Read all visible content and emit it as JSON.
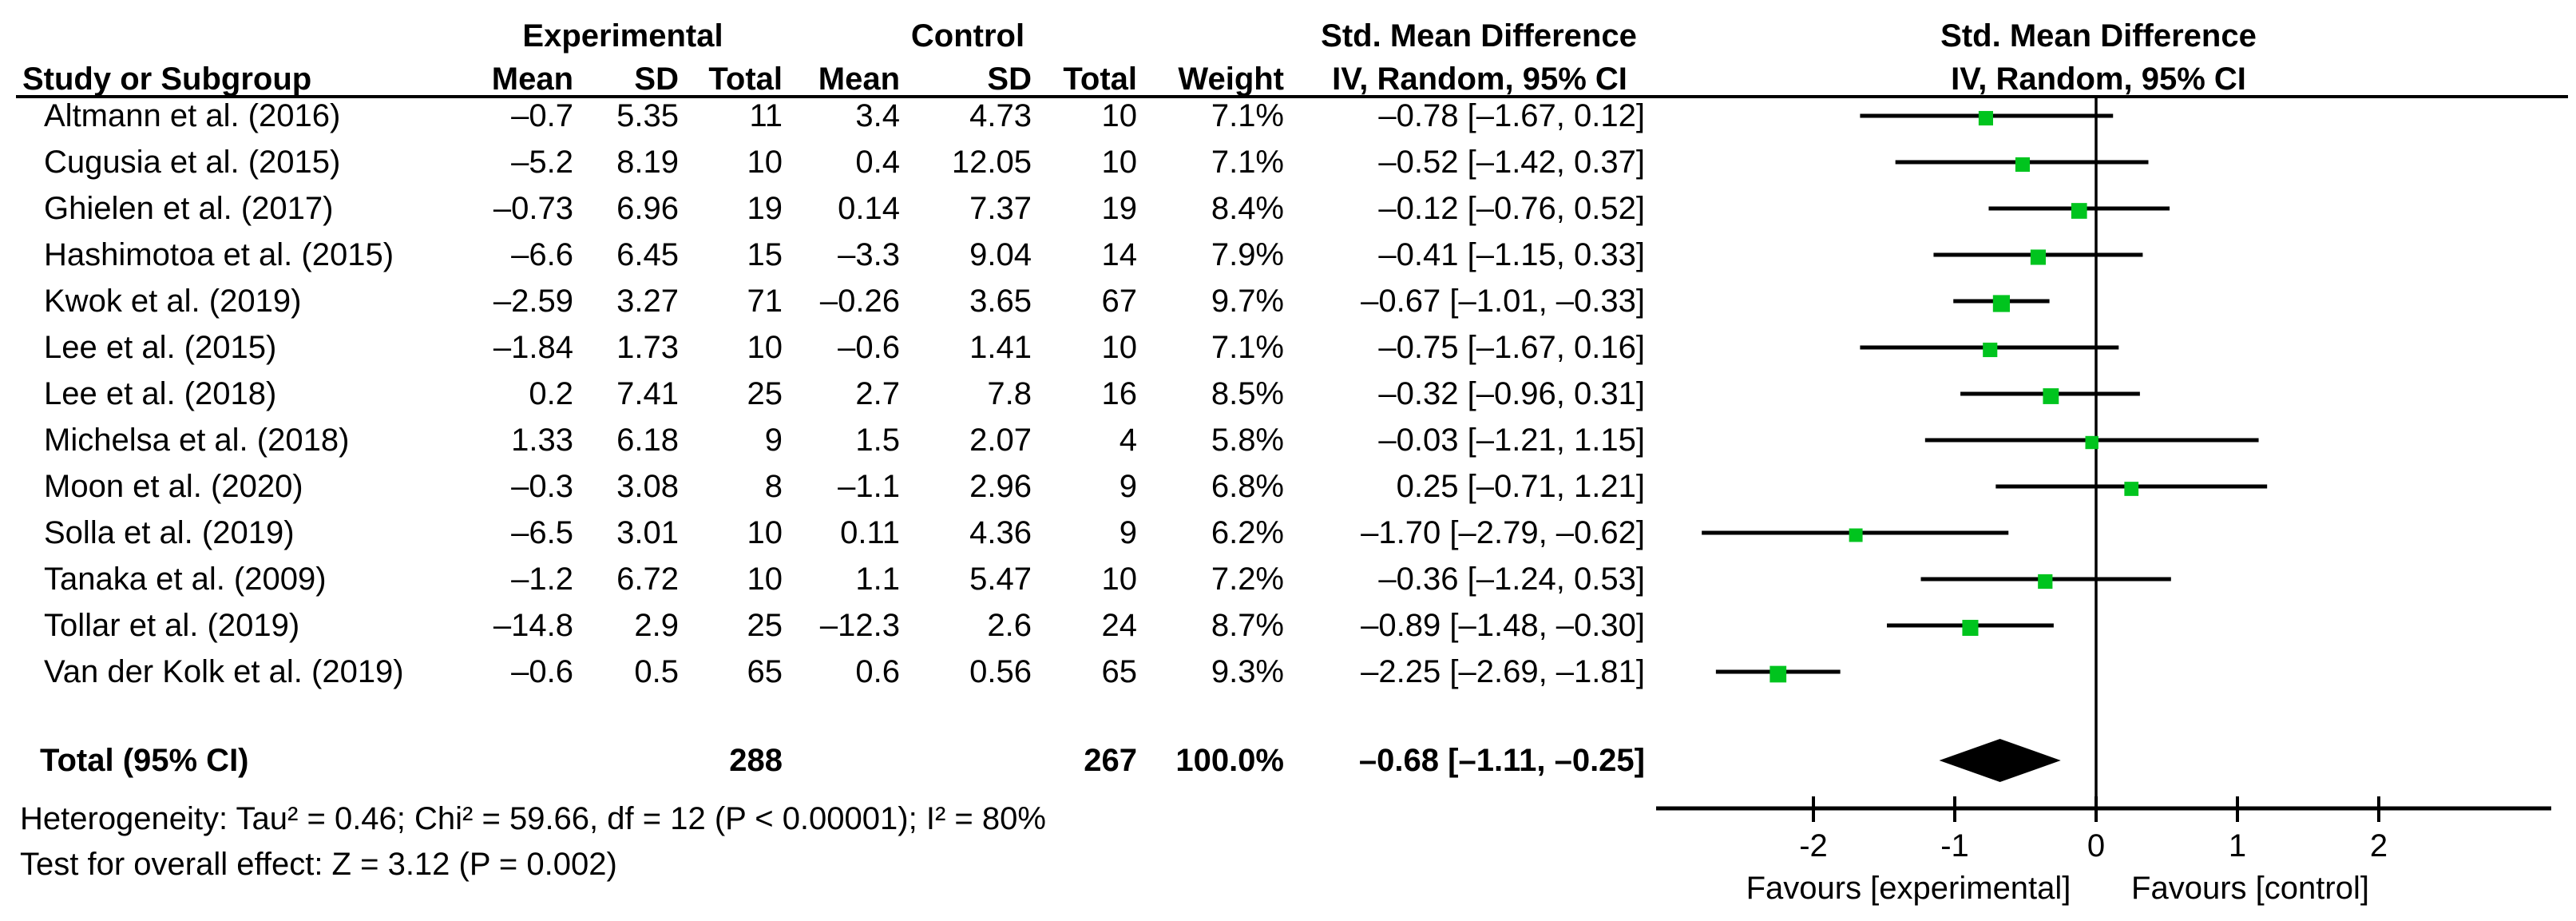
{
  "figure": {
    "group_headers": {
      "experimental": "Experimental",
      "control": "Control",
      "smd_left": "Std. Mean Difference",
      "smd_right": "Std. Mean Difference"
    },
    "column_headers": {
      "study": "Study or Subgroup",
      "mean": "Mean",
      "sd": "SD",
      "total": "Total",
      "weight": "Weight",
      "iv_left": "IV, Random, 95% CI",
      "iv_right": "IV, Random, 95% CI"
    }
  },
  "chart_data": {
    "type": "forest",
    "effect_measure": "Std. Mean Difference",
    "model": "IV, Random, 95% CI",
    "axis": {
      "ticks": [
        -2,
        -1,
        0,
        1,
        2
      ],
      "tick_labels": [
        "-2",
        "-1",
        "0",
        "1",
        "2"
      ],
      "min": -3.1,
      "max": 3.2,
      "zero_line": 0
    },
    "xlabel_left": "Favours [experimental]",
    "xlabel_right": "Favours [control]",
    "marker_color": "#00C41E",
    "diamond_color": "#000000",
    "studies": [
      {
        "name": "Altmann et al. (2016)",
        "exp_mean": "–0.7",
        "exp_sd": "5.35",
        "exp_total": "11",
        "ctrl_mean": "3.4",
        "ctrl_sd": "4.73",
        "ctrl_total": "10",
        "weight": "7.1%",
        "ci_text": "–0.78 [–1.67, 0.12]",
        "smd": -0.78,
        "ci_low": -1.67,
        "ci_high": 0.12,
        "weight_pct": 7.1
      },
      {
        "name": "Cugusia et al. (2015)",
        "exp_mean": "–5.2",
        "exp_sd": "8.19",
        "exp_total": "10",
        "ctrl_mean": "0.4",
        "ctrl_sd": "12.05",
        "ctrl_total": "10",
        "weight": "7.1%",
        "ci_text": "–0.52 [–1.42, 0.37]",
        "smd": -0.52,
        "ci_low": -1.42,
        "ci_high": 0.37,
        "weight_pct": 7.1
      },
      {
        "name": "Ghielen et al. (2017)",
        "exp_mean": "–0.73",
        "exp_sd": "6.96",
        "exp_total": "19",
        "ctrl_mean": "0.14",
        "ctrl_sd": "7.37",
        "ctrl_total": "19",
        "weight": "8.4%",
        "ci_text": "–0.12 [–0.76, 0.52]",
        "smd": -0.12,
        "ci_low": -0.76,
        "ci_high": 0.52,
        "weight_pct": 8.4
      },
      {
        "name": "Hashimotoa et al. (2015)",
        "exp_mean": "–6.6",
        "exp_sd": "6.45",
        "exp_total": "15",
        "ctrl_mean": "–3.3",
        "ctrl_sd": "9.04",
        "ctrl_total": "14",
        "weight": "7.9%",
        "ci_text": "–0.41 [–1.15, 0.33]",
        "smd": -0.41,
        "ci_low": -1.15,
        "ci_high": 0.33,
        "weight_pct": 7.9
      },
      {
        "name": "Kwok et al. (2019)",
        "exp_mean": "–2.59",
        "exp_sd": "3.27",
        "exp_total": "71",
        "ctrl_mean": "–0.26",
        "ctrl_sd": "3.65",
        "ctrl_total": "67",
        "weight": "9.7%",
        "ci_text": "–0.67 [–1.01, –0.33]",
        "smd": -0.67,
        "ci_low": -1.01,
        "ci_high": -0.33,
        "weight_pct": 9.7
      },
      {
        "name": "Lee et al. (2015)",
        "exp_mean": "–1.84",
        "exp_sd": "1.73",
        "exp_total": "10",
        "ctrl_mean": "–0.6",
        "ctrl_sd": "1.41",
        "ctrl_total": "10",
        "weight": "7.1%",
        "ci_text": "–0.75 [–1.67, 0.16]",
        "smd": -0.75,
        "ci_low": -1.67,
        "ci_high": 0.16,
        "weight_pct": 7.1
      },
      {
        "name": "Lee et al. (2018)",
        "exp_mean": "0.2",
        "exp_sd": "7.41",
        "exp_total": "25",
        "ctrl_mean": "2.7",
        "ctrl_sd": "7.8",
        "ctrl_total": "16",
        "weight": "8.5%",
        "ci_text": "–0.32 [–0.96, 0.31]",
        "smd": -0.32,
        "ci_low": -0.96,
        "ci_high": 0.31,
        "weight_pct": 8.5
      },
      {
        "name": "Michelsa et al. (2018)",
        "exp_mean": "1.33",
        "exp_sd": "6.18",
        "exp_total": "9",
        "ctrl_mean": "1.5",
        "ctrl_sd": "2.07",
        "ctrl_total": "4",
        "weight": "5.8%",
        "ci_text": "–0.03 [–1.21, 1.15]",
        "smd": -0.03,
        "ci_low": -1.21,
        "ci_high": 1.15,
        "weight_pct": 5.8
      },
      {
        "name": "Moon et al. (2020)",
        "exp_mean": "–0.3",
        "exp_sd": "3.08",
        "exp_total": "8",
        "ctrl_mean": "–1.1",
        "ctrl_sd": "2.96",
        "ctrl_total": "9",
        "weight": "6.8%",
        "ci_text": "0.25 [–0.71, 1.21]",
        "smd": 0.25,
        "ci_low": -0.71,
        "ci_high": 1.21,
        "weight_pct": 6.8
      },
      {
        "name": "Solla et al. (2019)",
        "exp_mean": "–6.5",
        "exp_sd": "3.01",
        "exp_total": "10",
        "ctrl_mean": "0.11",
        "ctrl_sd": "4.36",
        "ctrl_total": "9",
        "weight": "6.2%",
        "ci_text": "–1.70 [–2.79, –0.62]",
        "smd": -1.7,
        "ci_low": -2.79,
        "ci_high": -0.62,
        "weight_pct": 6.2
      },
      {
        "name": "Tanaka et al. (2009)",
        "exp_mean": "–1.2",
        "exp_sd": "6.72",
        "exp_total": "10",
        "ctrl_mean": "1.1",
        "ctrl_sd": "5.47",
        "ctrl_total": "10",
        "weight": "7.2%",
        "ci_text": "–0.36 [–1.24, 0.53]",
        "smd": -0.36,
        "ci_low": -1.24,
        "ci_high": 0.53,
        "weight_pct": 7.2
      },
      {
        "name": "Tollar et al. (2019)",
        "exp_mean": "–14.8",
        "exp_sd": "2.9",
        "exp_total": "25",
        "ctrl_mean": "–12.3",
        "ctrl_sd": "2.6",
        "ctrl_total": "24",
        "weight": "8.7%",
        "ci_text": "–0.89 [–1.48, –0.30]",
        "smd": -0.89,
        "ci_low": -1.48,
        "ci_high": -0.3,
        "weight_pct": 8.7
      },
      {
        "name": "Van der Kolk et al. (2019)",
        "exp_mean": "–0.6",
        "exp_sd": "0.5",
        "exp_total": "65",
        "ctrl_mean": "0.6",
        "ctrl_sd": "0.56",
        "ctrl_total": "65",
        "weight": "9.3%",
        "ci_text": "–2.25 [–2.69, –1.81]",
        "smd": -2.25,
        "ci_low": -2.69,
        "ci_high": -1.81,
        "weight_pct": 9.3
      }
    ],
    "total": {
      "label": "Total (95% CI)",
      "exp_total": "288",
      "ctrl_total": "267",
      "weight": "100.0%",
      "ci_text": "–0.68 [–1.11, –0.25]",
      "smd": -0.68,
      "ci_low": -1.11,
      "ci_high": -0.25,
      "weight_pct": 100.0
    }
  },
  "footer": {
    "heterogeneity": "Heterogeneity: Tau² = 0.46; Chi² = 59.66, df = 12 (P < 0.00001); I² = 80%",
    "overall_effect": "Test for overall effect: Z = 3.12 (P = 0.002)"
  }
}
